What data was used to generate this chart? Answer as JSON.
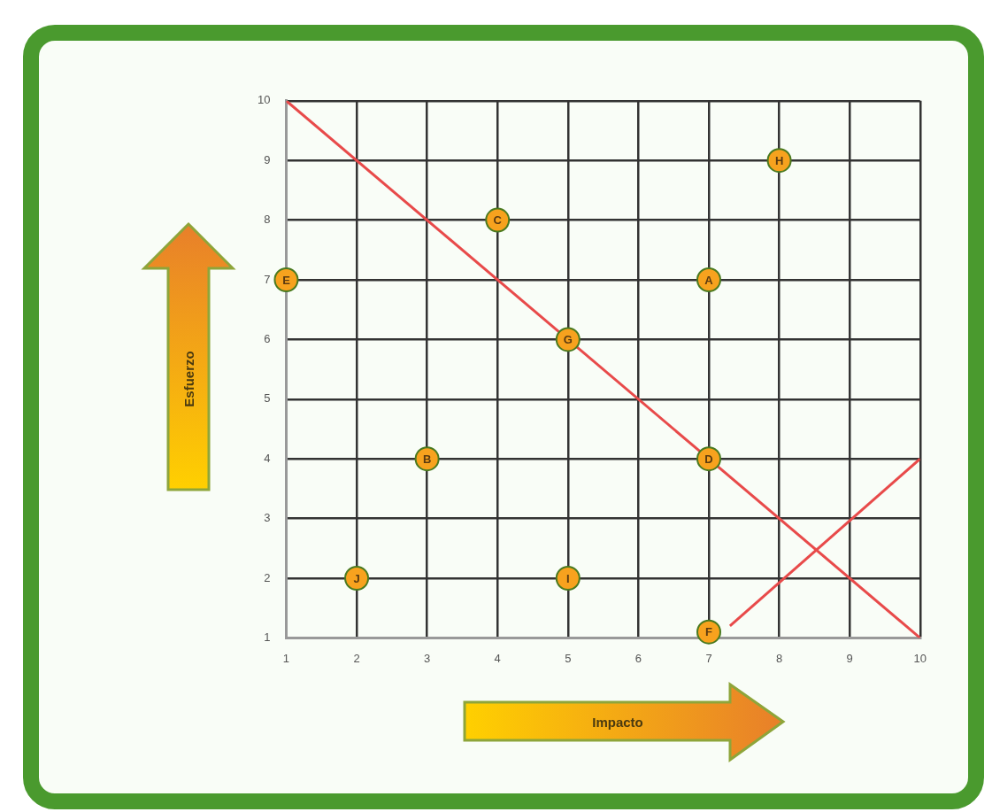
{
  "chart_data": {
    "type": "scatter",
    "xlabel": "Impacto",
    "ylabel": "Esfuerzo",
    "xlim": [
      1,
      10
    ],
    "ylim": [
      1,
      10
    ],
    "xticks": [
      1,
      2,
      3,
      4,
      5,
      6,
      7,
      8,
      9,
      10
    ],
    "yticks": [
      1,
      2,
      3,
      4,
      5,
      6,
      7,
      8,
      9,
      10
    ],
    "grid": true,
    "legend": false,
    "series": [
      {
        "marker": "circle",
        "color": "#f7a21e",
        "x": [
          7,
          3,
          4,
          7,
          1,
          7,
          5,
          8,
          5,
          2
        ],
        "values": [
          7,
          4,
          8,
          4,
          7,
          1.1,
          6,
          9,
          2,
          2
        ],
        "value_labels": [
          "A",
          "B",
          "C",
          "D",
          "E",
          "F",
          "G",
          "H",
          "I",
          "J"
        ]
      },
      {
        "type": "line",
        "color": "#e84a4a",
        "x": [
          1,
          10
        ],
        "values": [
          10,
          1
        ]
      },
      {
        "type": "line",
        "color": "#e84a4a",
        "x": [
          7.3,
          10
        ],
        "values": [
          1.2,
          4
        ]
      }
    ]
  }
}
